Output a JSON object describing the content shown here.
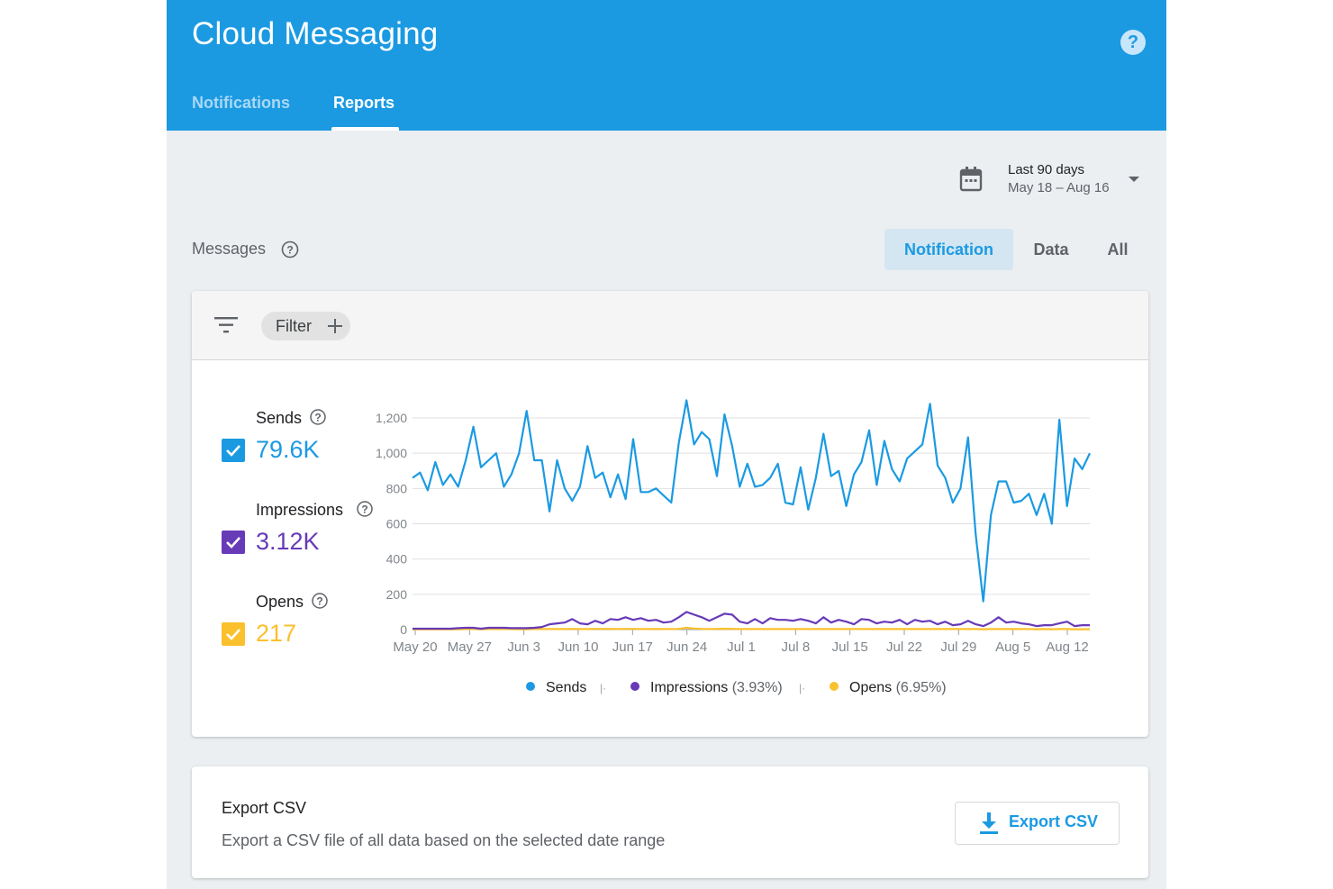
{
  "app": {
    "title": "Cloud Messaging",
    "help_icon": "help-circle-icon",
    "tabs": [
      {
        "label": "Notifications",
        "active": false
      },
      {
        "label": "Reports",
        "active": true
      }
    ],
    "colors": {
      "header": "#1b9ae2",
      "background": "#eceff1"
    }
  },
  "date_range": {
    "icon": "calendar-icon",
    "label": "Last 90 days",
    "range": "May 18 – Aug 16"
  },
  "messages": {
    "label": "Messages",
    "help_icon": "help-outline-icon",
    "types": [
      {
        "label": "Notification",
        "selected": true
      },
      {
        "label": "Data",
        "selected": false
      },
      {
        "label": "All",
        "selected": false
      }
    ]
  },
  "filter": {
    "icon": "filter-list-icon",
    "chip_label": "Filter",
    "chip_icon": "plus-icon"
  },
  "metrics": [
    {
      "name": "Sends",
      "value": "79.6K",
      "checked": true,
      "color": "#1b9ae2"
    },
    {
      "name": "Impressions",
      "value": "3.12K",
      "checked": true,
      "color": "#673ab7"
    },
    {
      "name": "Opens",
      "value": "217",
      "checked": true,
      "color": "#fbc02d"
    }
  ],
  "legend": [
    {
      "name": "Sends",
      "pct": ""
    },
    {
      "name": "Impressions",
      "pct": "(3.93%)"
    },
    {
      "name": "Opens",
      "pct": "(6.95%)"
    }
  ],
  "chart_data": {
    "type": "line",
    "x_tick_labels": [
      "May 20",
      "May 27",
      "Jun 3",
      "Jun 10",
      "Jun 17",
      "Jun 24",
      "Jul 1",
      "Jul 8",
      "Jul 15",
      "Jul 22",
      "Jul 29",
      "Aug 5",
      "Aug 12"
    ],
    "y_tick_labels": [
      "0",
      "200",
      "400",
      "600",
      "800",
      "1,000",
      "1,200"
    ],
    "ylim": [
      0,
      1200
    ],
    "grid": true,
    "legend_position": "bottom",
    "series": [
      {
        "name": "Sends",
        "color": "#1b9ae2",
        "values": [
          860,
          890,
          790,
          950,
          820,
          880,
          810,
          960,
          1150,
          920,
          960,
          1000,
          810,
          880,
          1000,
          1240,
          960,
          960,
          670,
          960,
          800,
          730,
          810,
          1040,
          860,
          890,
          750,
          880,
          740,
          1080,
          780,
          780,
          800,
          760,
          720,
          1060,
          1300,
          1050,
          1120,
          1080,
          870,
          1220,
          1040,
          810,
          940,
          810,
          820,
          860,
          940,
          720,
          710,
          920,
          680,
          860,
          1110,
          870,
          900,
          700,
          880,
          950,
          1130,
          820,
          1070,
          910,
          840,
          970,
          1010,
          1050,
          1280,
          930,
          860,
          720,
          800,
          1090,
          540,
          160,
          650,
          840,
          840,
          720,
          730,
          770,
          650,
          770,
          600,
          1190,
          700,
          970,
          910,
          1000
        ]
      },
      {
        "name": "Impressions",
        "color": "#673ab7",
        "values": [
          5,
          5,
          5,
          5,
          5,
          5,
          8,
          10,
          10,
          5,
          10,
          10,
          10,
          8,
          8,
          8,
          10,
          15,
          30,
          35,
          40,
          60,
          35,
          30,
          50,
          35,
          60,
          55,
          70,
          55,
          65,
          50,
          55,
          40,
          45,
          70,
          100,
          85,
          70,
          50,
          70,
          90,
          85,
          45,
          35,
          60,
          35,
          65,
          55,
          55,
          50,
          60,
          50,
          35,
          70,
          40,
          55,
          45,
          30,
          60,
          55,
          35,
          45,
          40,
          55,
          30,
          55,
          45,
          50,
          30,
          45,
          25,
          30,
          50,
          30,
          20,
          40,
          70,
          40,
          45,
          35,
          30,
          20,
          25,
          25,
          35,
          45,
          20,
          25,
          25
        ]
      },
      {
        "name": "Opens",
        "color": "#fbc02d",
        "values": [
          1,
          1,
          1,
          1,
          1,
          1,
          2,
          3,
          3,
          2,
          3,
          3,
          3,
          3,
          2,
          2,
          3,
          3,
          3,
          3,
          3,
          4,
          3,
          3,
          4,
          4,
          4,
          3,
          4,
          4,
          3,
          3,
          4,
          3,
          3,
          4,
          10,
          6,
          4,
          3,
          4,
          5,
          4,
          3,
          3,
          3,
          3,
          3,
          3,
          3,
          3,
          3,
          3,
          3,
          3,
          3,
          3,
          3,
          3,
          3,
          3,
          3,
          3,
          3,
          3,
          3,
          3,
          3,
          3,
          3,
          3,
          3,
          3,
          3,
          3,
          2,
          3,
          3,
          3,
          3,
          3,
          3,
          2,
          3,
          2,
          3,
          3,
          2,
          2,
          2
        ]
      }
    ]
  },
  "export": {
    "title": "Export CSV",
    "description": "Export a CSV file of all data based on the selected date range",
    "button_label": "Export CSV",
    "button_icon": "download-icon"
  }
}
